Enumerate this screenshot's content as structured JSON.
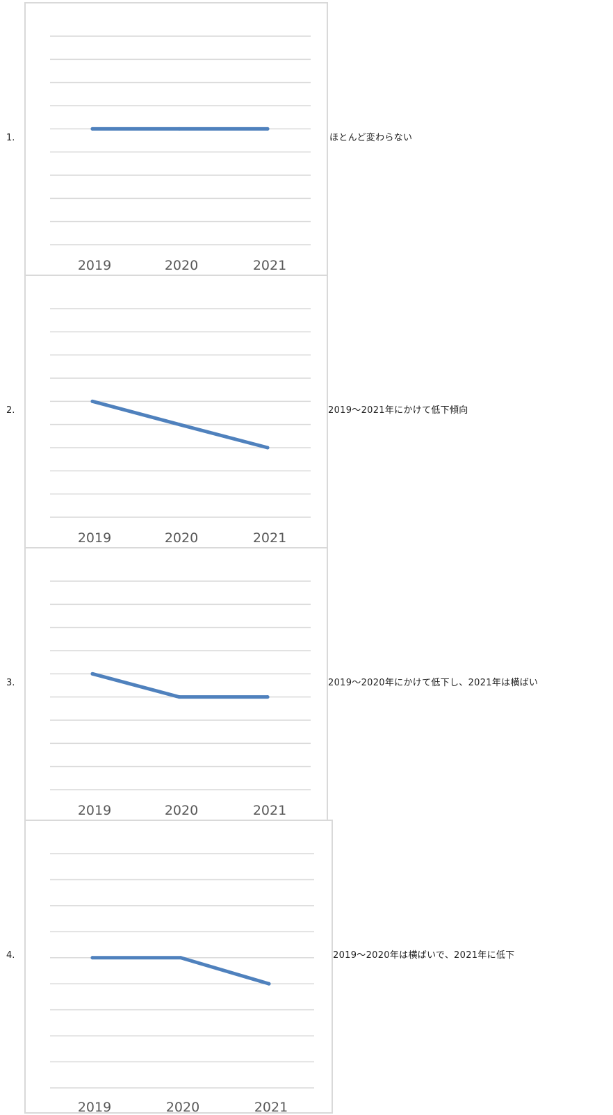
{
  "chart_data": [
    {
      "type": "line",
      "number": "1.",
      "categories": [
        "2019",
        "2020",
        "2021"
      ],
      "values": [
        5,
        5,
        5
      ],
      "ylim": [
        0,
        9
      ],
      "grid": true,
      "description": "ほとんど変わらない",
      "color": "#4f81bd"
    },
    {
      "type": "line",
      "number": "2.",
      "categories": [
        "2019",
        "2020",
        "2021"
      ],
      "values": [
        5,
        4,
        3
      ],
      "ylim": [
        0,
        9
      ],
      "grid": true,
      "description": "2019～2021年にかけて低下傾向",
      "color": "#4f81bd"
    },
    {
      "type": "line",
      "number": "3.",
      "categories": [
        "2019",
        "2020",
        "2021"
      ],
      "values": [
        5,
        4,
        4
      ],
      "ylim": [
        0,
        9
      ],
      "grid": true,
      "description": "2019～2020年にかけて低下し、2021年は横ばい",
      "color": "#4f81bd"
    },
    {
      "type": "line",
      "number": "4.",
      "categories": [
        "2019",
        "2020",
        "2021"
      ],
      "values": [
        5,
        5,
        4
      ],
      "ylim": [
        0,
        9
      ],
      "grid": true,
      "description": "2019～2020年は横ばいで、2021年に低下",
      "color": "#4f81bd"
    }
  ]
}
